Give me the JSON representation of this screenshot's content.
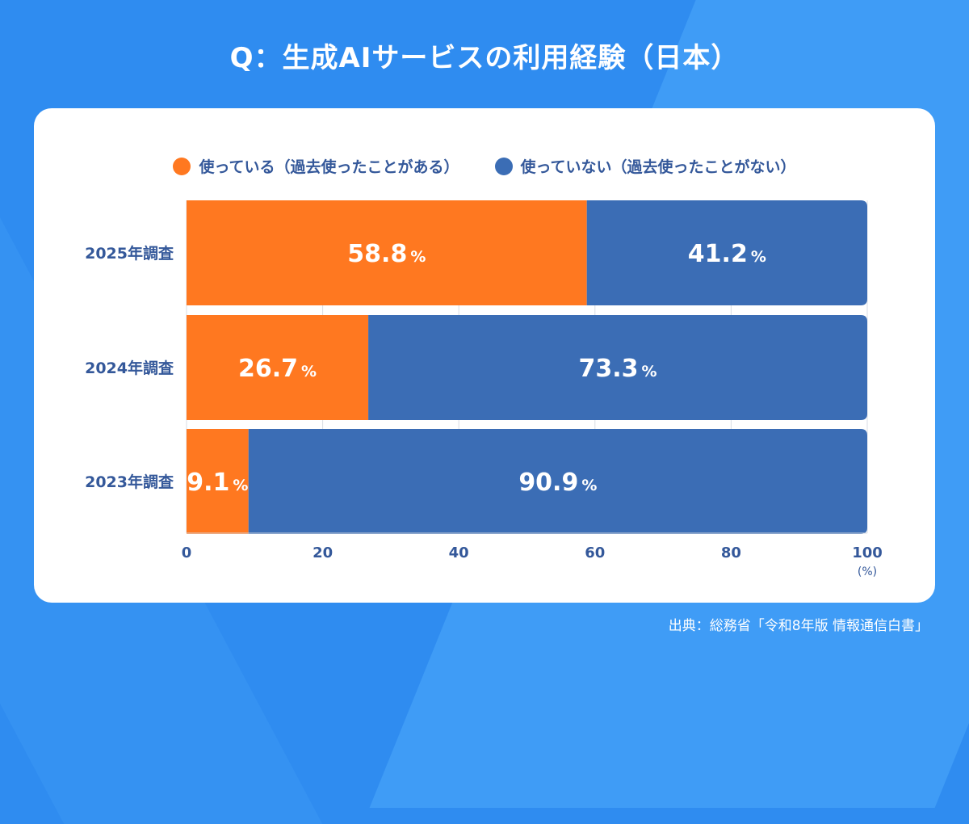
{
  "title": "Q：生成AIサービスの利用経験（日本）",
  "source": "出典：総務省「令和8年版 情報通信白書」",
  "colors": {
    "used": "#ff7820",
    "not_used": "#3b6db5",
    "axis_text": "#34589a",
    "grid": "#d9dde4"
  },
  "chart_data": {
    "type": "bar",
    "orientation": "horizontal",
    "stacked": true,
    "categories": [
      "2025年調査",
      "2024年調査",
      "2023年調査"
    ],
    "series": [
      {
        "name": "使っている（過去使ったことがある）",
        "color": "#ff7820",
        "values": [
          58.8,
          26.7,
          9.1
        ]
      },
      {
        "name": "使っていない（過去使ったことがない）",
        "color": "#3b6db5",
        "values": [
          41.2,
          73.3,
          90.9
        ]
      }
    ],
    "value_suffix": "%",
    "xlim": [
      0,
      100
    ],
    "xticks": [
      "0",
      "20",
      "40",
      "60",
      "80",
      "100"
    ],
    "xunit": "(%)",
    "legend_position": "top",
    "grid": true
  }
}
